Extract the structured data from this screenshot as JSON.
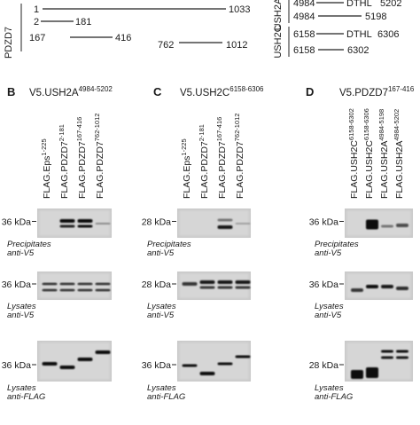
{
  "constructs": {
    "pdzd7": {
      "gene": "PDZD7",
      "items": [
        {
          "start": "1",
          "end": "1033"
        },
        {
          "start": "2",
          "end": "181"
        },
        {
          "start": "167",
          "end": "416"
        },
        {
          "start": "762",
          "end": "1012"
        }
      ]
    },
    "ush2a": {
      "gene": "USH2A",
      "items": [
        {
          "start": "4984",
          "domain": "DTHL",
          "end": "5202"
        },
        {
          "start": "4984",
          "end": "5198"
        }
      ]
    },
    "ush2c": {
      "gene": "USH2C",
      "items": [
        {
          "start": "6158",
          "domain": "DTHL",
          "end": "6306"
        },
        {
          "start": "6158",
          "end": "6302"
        }
      ]
    }
  },
  "panels": [
    {
      "letter": "B",
      "bait_prefix": "V5.USH2A",
      "bait_sup": "4984-5202",
      "lanes": [
        {
          "name": "FLAG.Eps",
          "sup": "1-225"
        },
        {
          "name": "FLAG.PDZD7",
          "sup": "2-181"
        },
        {
          "name": "FLAG.PDZD7",
          "sup": "167-416"
        },
        {
          "name": "FLAG.PDZD7",
          "sup": "762-1012"
        }
      ],
      "blots": [
        {
          "marker": "36 kDa",
          "caption_1": "Precipitates",
          "caption_2": "anti-V5"
        },
        {
          "marker": "36 kDa",
          "caption_1": "Lysates",
          "caption_2": "anti-V5"
        },
        {
          "marker": "36 kDa",
          "caption_1": "Lysates",
          "caption_2": "anti-FLAG"
        }
      ]
    },
    {
      "letter": "C",
      "bait_prefix": "V5.USH2C",
      "bait_sup": "6158-6306",
      "lanes": [
        {
          "name": "FLAG.Eps",
          "sup": "1-225"
        },
        {
          "name": "FLAG.PDZD7",
          "sup": "2-181"
        },
        {
          "name": "FLAG.PDZD7",
          "sup": "167-416"
        },
        {
          "name": "FLAG.PDZD7",
          "sup": "762-1012"
        }
      ],
      "blots": [
        {
          "marker": "28 kDa",
          "caption_1": "Precipitates",
          "caption_2": "anti-V5"
        },
        {
          "marker": "28 kDa",
          "caption_1": "Lysates",
          "caption_2": "anti-V5"
        },
        {
          "marker": "36 kDa",
          "caption_1": "Lysates",
          "caption_2": "anti-FLAG"
        }
      ]
    },
    {
      "letter": "D",
      "bait_prefix": "V5.PDZD7",
      "bait_sup": "167-416",
      "lanes": [
        {
          "name": "FLAG.USH2C",
          "sup": "6158-6302"
        },
        {
          "name": "FLAG.USH2C",
          "sup": "6158-6306"
        },
        {
          "name": "FLAG.USH2A",
          "sup": "4984-5198"
        },
        {
          "name": "FLAG.USH2A",
          "sup": "4984-5202"
        }
      ],
      "blots": [
        {
          "marker": "36 kDa",
          "caption_1": "Precipitates",
          "caption_2": "anti-V5"
        },
        {
          "marker": "36 kDa",
          "caption_1": "Lysates",
          "caption_2": "anti-V5"
        },
        {
          "marker": "28 kDa",
          "caption_1": "Lysates",
          "caption_2": "anti-FLAG"
        }
      ]
    }
  ]
}
